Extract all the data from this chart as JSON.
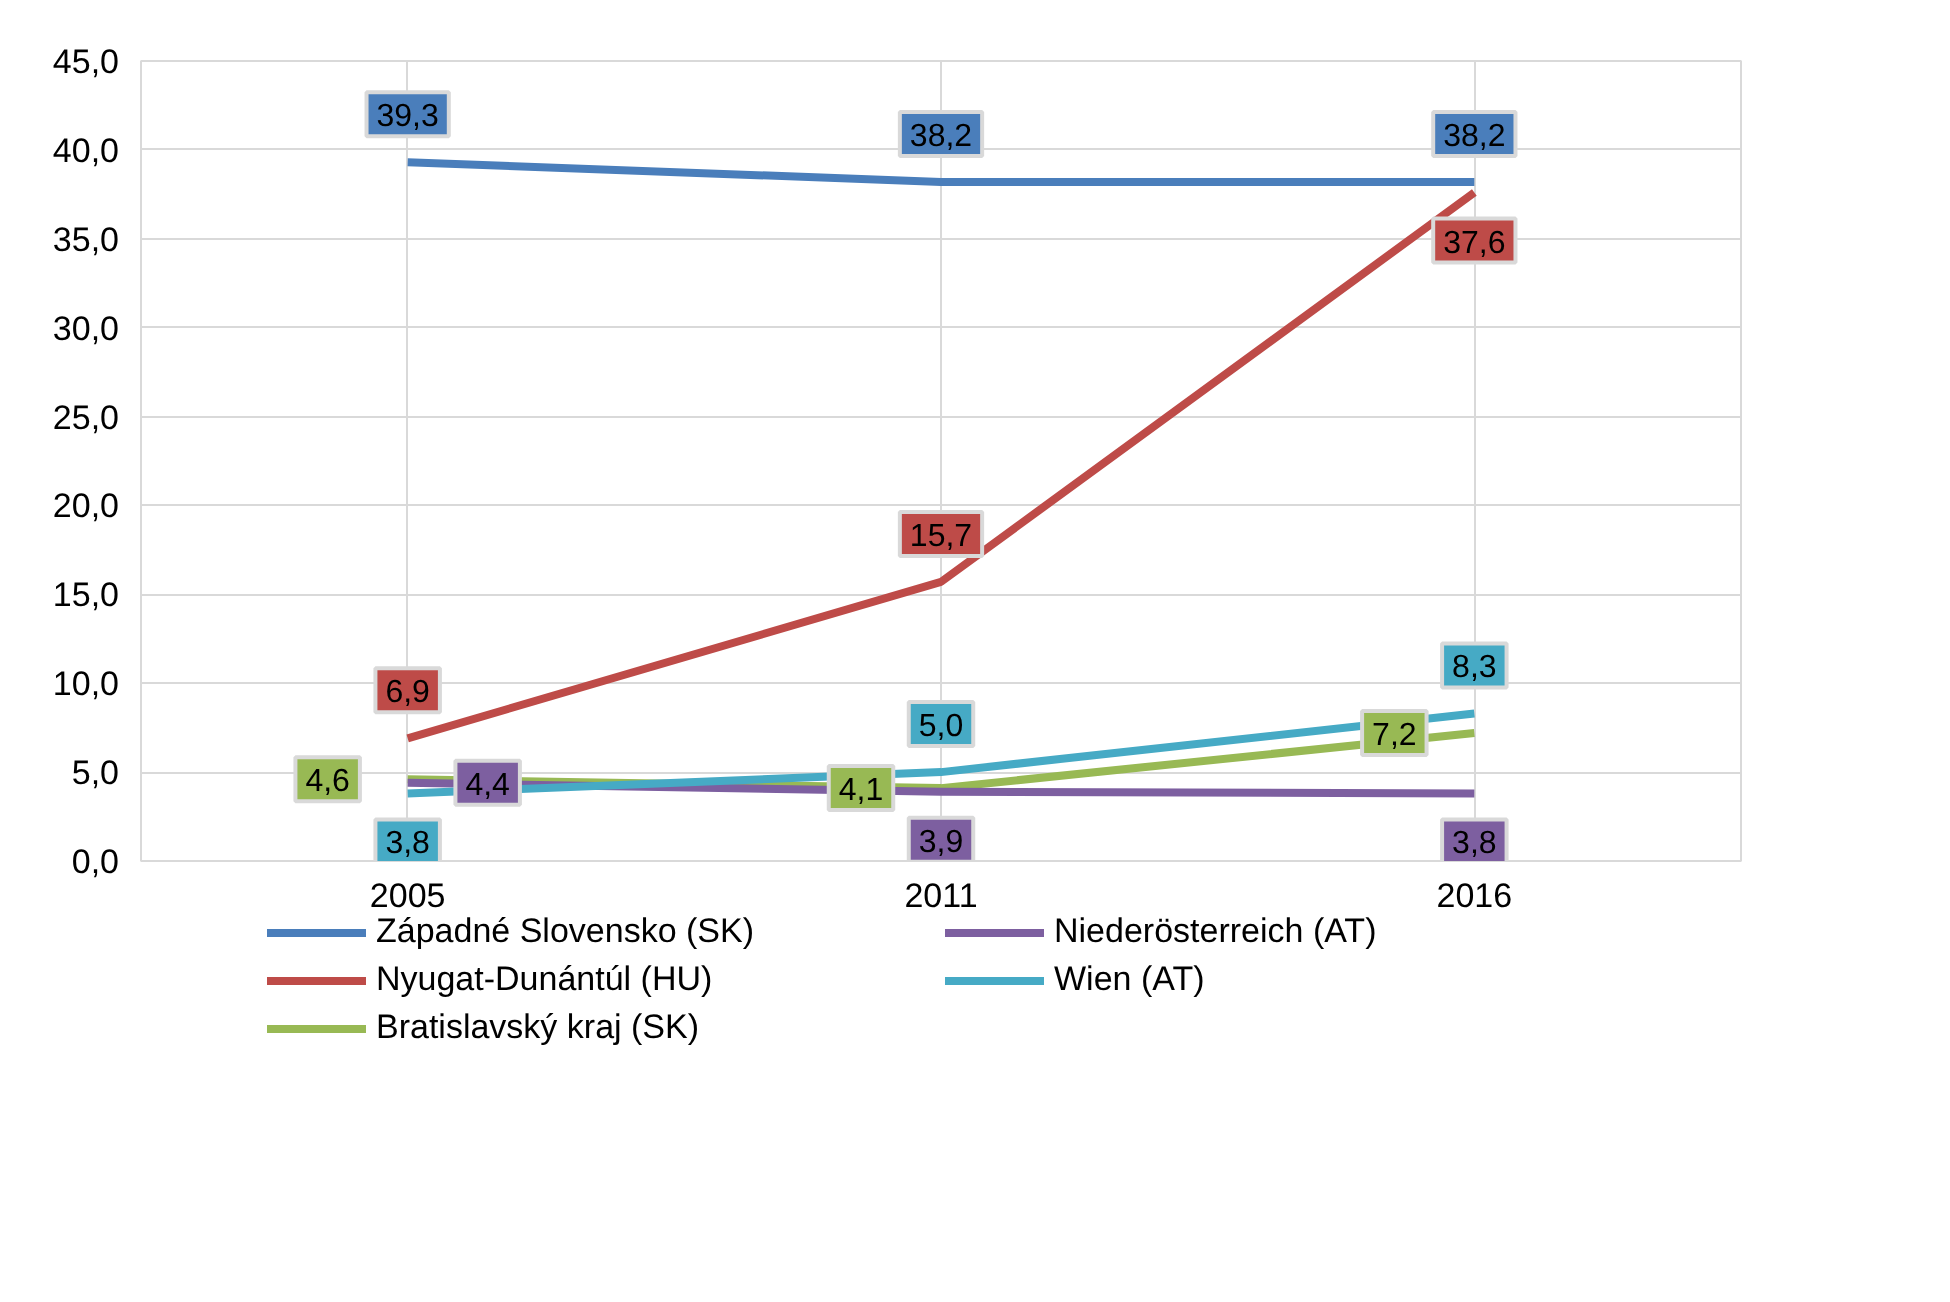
{
  "chart_data": {
    "type": "line",
    "categories": [
      "2005",
      "2011",
      "2016"
    ],
    "series": [
      {
        "name": "Západné Slovensko (SK)",
        "color": "#4a7ebb",
        "values": [
          39.3,
          38.2,
          38.2
        ],
        "value_labels": [
          "39,3",
          "38,2",
          "38,2"
        ]
      },
      {
        "name": "Nyugat-Dunántúl (HU)",
        "color": "#be4b48",
        "values": [
          6.9,
          15.7,
          37.6
        ],
        "value_labels": [
          "6,9",
          "15,7",
          "37,6"
        ]
      },
      {
        "name": "Bratislavský kraj (SK)",
        "color": "#98b954",
        "values": [
          4.6,
          4.1,
          7.2
        ],
        "value_labels": [
          "4,6",
          "4,1",
          "7,2"
        ]
      },
      {
        "name": "Niederösterreich (AT)",
        "color": "#7d5fa0",
        "values": [
          4.4,
          3.9,
          3.8
        ],
        "value_labels": [
          "4,4",
          "3,9",
          "3,8"
        ]
      },
      {
        "name": "Wien (AT)",
        "color": "#46aac5",
        "values": [
          3.8,
          5.0,
          8.3
        ],
        "value_labels": [
          "3,8",
          "5,0",
          "8,3"
        ]
      }
    ],
    "ylim": [
      0,
      45
    ],
    "yticks": [
      {
        "value": 0,
        "label": "0,0"
      },
      {
        "value": 5,
        "label": "5,0"
      },
      {
        "value": 10,
        "label": "10,0"
      },
      {
        "value": 15,
        "label": "15,0"
      },
      {
        "value": 20,
        "label": "20,0"
      },
      {
        "value": 25,
        "label": "25,0"
      },
      {
        "value": 30,
        "label": "30,0"
      },
      {
        "value": 35,
        "label": "35,0"
      },
      {
        "value": 40,
        "label": "40,0"
      },
      {
        "value": 45,
        "label": "45,0"
      }
    ],
    "grid": true,
    "legend": "bottom",
    "line_style": "solid"
  }
}
